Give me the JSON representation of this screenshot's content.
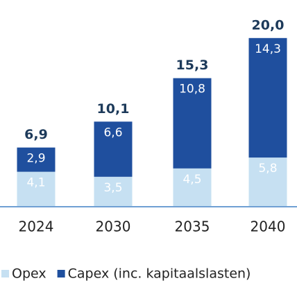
{
  "chart_data": {
    "type": "stacked_bar",
    "categories": [
      "2024",
      "2030",
      "2035",
      "2040"
    ],
    "series": [
      {
        "name": "Opex",
        "color": "#c6e0f2",
        "values": [
          4.1,
          3.5,
          4.5,
          5.8
        ],
        "value_labels": [
          "4,1",
          "3,5",
          "4,5",
          "5,8"
        ]
      },
      {
        "name": "Capex (inc. kapitaalslasten)",
        "color": "#1f4f9e",
        "values": [
          2.9,
          6.6,
          10.8,
          14.3
        ],
        "value_labels": [
          "2,9",
          "6,6",
          "10,8",
          "14,3"
        ]
      }
    ],
    "totals": {
      "values": [
        6.9,
        10.1,
        15.3,
        20.0
      ],
      "value_labels": [
        "6,9",
        "10,1",
        "15,3",
        "20,0"
      ]
    },
    "ylim": [
      0,
      20.5
    ]
  }
}
